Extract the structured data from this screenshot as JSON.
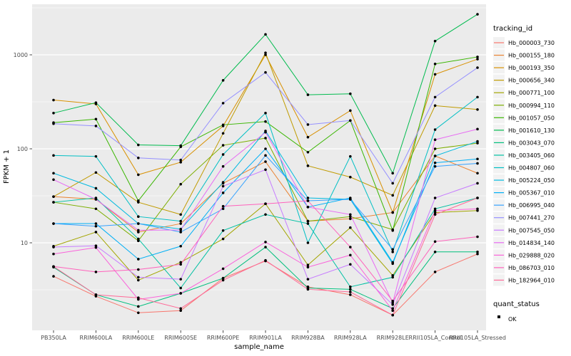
{
  "chart_data": {
    "type": "line",
    "title": "",
    "xlabel": "sample_name",
    "ylabel": "FPKM + 1",
    "y_scale": "log10",
    "ylim": [
      1.2,
      3300
    ],
    "y_ticks": [
      10,
      100,
      1000
    ],
    "y_tick_labels": [
      "10",
      "100",
      "1000"
    ],
    "y_minor_ticks": [
      3.162,
      31.62,
      316.2,
      3162
    ],
    "grid": true,
    "legend_position": "right",
    "legend_title": "tracking_id",
    "shape_legend": {
      "title": "quant_status",
      "entries": [
        "OK"
      ]
    },
    "categories": [
      "PB350LA",
      "RRIM600LA",
      "RRIM600LE",
      "RRIM600SE",
      "RRIM600PE",
      "RRIM901LA",
      "RRIM928BA",
      "RRIM928LA",
      "RRIM928LE",
      "RRII105LA_Control",
      "RRII105LA_Stressed"
    ],
    "series": [
      {
        "name": "Hb_000003_730",
        "color": "#F8766D",
        "values": [
          4.4,
          2.7,
          1.8,
          1.9,
          4.2,
          6.4,
          3.4,
          2.8,
          1.7,
          4.9,
          7.6
        ]
      },
      {
        "name": "Hb_000155_180",
        "color": "#EA8331",
        "values": [
          31,
          29,
          13,
          16,
          43,
          73,
          17,
          18,
          21,
          84,
          55
        ]
      },
      {
        "name": "Hb_000193_350",
        "color": "#D89000",
        "values": [
          330,
          300,
          53,
          72,
          175,
          1000,
          133,
          255,
          21,
          620,
          900
        ]
      },
      {
        "name": "Hb_000656_340",
        "color": "#C09B00",
        "values": [
          31,
          56,
          27,
          20,
          146,
          1050,
          66,
          50,
          32,
          288,
          262
        ]
      },
      {
        "name": "Hb_000771_100",
        "color": "#A3A500",
        "values": [
          9.2,
          13,
          4.0,
          6.2,
          11,
          26,
          5.8,
          14.5,
          4.5,
          21,
          22
        ]
      },
      {
        "name": "Hb_000994_110",
        "color": "#7CAE00",
        "values": [
          27,
          23,
          10.5,
          42,
          109,
          130,
          17,
          19,
          13.8,
          100,
          115
        ]
      },
      {
        "name": "Hb_001057_050",
        "color": "#39B600",
        "values": [
          190,
          207,
          28,
          105,
          180,
          195,
          92,
          200,
          13.5,
          800,
          950
        ]
      },
      {
        "name": "Hb_001610_130",
        "color": "#00BB4E",
        "values": [
          240,
          310,
          110,
          108,
          535,
          1650,
          376,
          385,
          55,
          1400,
          2700
        ]
      },
      {
        "name": "Hb_003043_070",
        "color": "#00BF7D",
        "values": [
          5.5,
          2.8,
          2.1,
          2.9,
          4.2,
          9.0,
          3.3,
          3.2,
          2.0,
          8.0,
          8.0
        ]
      },
      {
        "name": "Hb_003405_060",
        "color": "#00C1A3",
        "values": [
          27,
          30,
          11,
          3.3,
          13.5,
          20,
          16,
          3.4,
          4.3,
          23,
          30
        ]
      },
      {
        "name": "Hb_004807_060",
        "color": "#00BFC4",
        "values": [
          85,
          83,
          19,
          17,
          87,
          240,
          10,
          83,
          8.0,
          160,
          355
        ]
      },
      {
        "name": "Hb_005224_050",
        "color": "#00BAE0",
        "values": [
          55,
          38,
          16,
          14,
          44,
          155,
          30,
          29,
          6.0,
          84,
          120
        ]
      },
      {
        "name": "Hb_005367_010",
        "color": "#00B0F6",
        "values": [
          16,
          16,
          6.7,
          9.2,
          34,
          100,
          24,
          30,
          6.2,
          71,
          78
        ]
      },
      {
        "name": "Hb_006995_040",
        "color": "#35A2FF",
        "values": [
          16,
          15,
          16,
          13,
          23,
          85,
          28,
          29,
          8.5,
          65,
          70
        ]
      },
      {
        "name": "Hb_007441_270",
        "color": "#9590FF",
        "values": [
          185,
          175,
          80,
          76,
          306,
          650,
          181,
          200,
          43,
          355,
          730
        ]
      },
      {
        "name": "Hb_007545_050",
        "color": "#C77CFF",
        "values": [
          9.0,
          9.3,
          4.3,
          4.1,
          40,
          60,
          4.1,
          5.9,
          2.2,
          30,
          43
        ]
      },
      {
        "name": "Hb_014834_140",
        "color": "#E76BF3",
        "values": [
          47,
          29,
          13.6,
          13.7,
          65,
          150,
          24,
          20,
          2.3,
          125,
          162
        ]
      },
      {
        "name": "Hb_029888_020",
        "color": "#FA62DB",
        "values": [
          7.6,
          8.9,
          2.5,
          2.9,
          5.3,
          10.2,
          5.5,
          7.4,
          1.9,
          22,
          23
        ]
      },
      {
        "name": "Hb_086703_010",
        "color": "#FF62BC",
        "values": [
          5.6,
          4.9,
          5.2,
          5.9,
          24.5,
          26,
          28,
          9.0,
          2.4,
          10.3,
          11.6
        ]
      },
      {
        "name": "Hb_182964_010",
        "color": "#FF6A98",
        "values": [
          5.6,
          2.8,
          2.6,
          2.0,
          4.0,
          6.5,
          3.2,
          3.0,
          1.7,
          20,
          30
        ]
      }
    ]
  },
  "colors": {
    "panel_bg": "#EBEBEB",
    "grid": "#FFFFFF",
    "axis_text": "#4D4D4D",
    "tick_mark": "#333333",
    "text": "#000000",
    "legend_key_bg": "#F2F2F2",
    "point": "#000000",
    "background": "#FFFFFF"
  }
}
